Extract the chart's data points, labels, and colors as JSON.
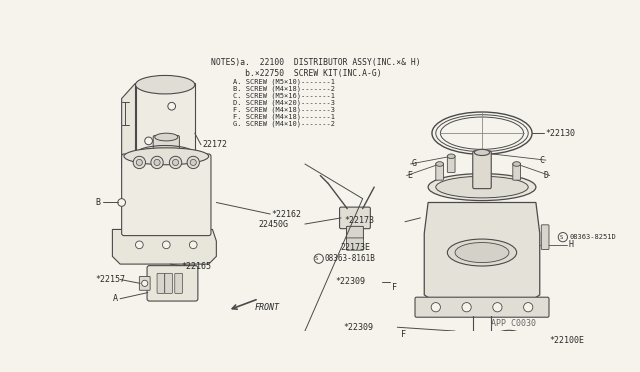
{
  "bg_color": "#f5f3ec",
  "line_color": "#4a4a4a",
  "text_color": "#2a2a2a",
  "notes_line1": "NOTES)a.  22100  DISTRIBUTOR ASSY(INC.×& H)",
  "notes_line2": "       b.×22750  SCREW KIT(INC.A-G)",
  "notes_lines": [
    "    A. SCREW (M5×10)-------1",
    "    B. SCREW (M4×18)-------2",
    "    C. SCREW (M5×16)-------1",
    "    D. SCREW (M4×20)-------3",
    "    F. SCREW (M4×18)-------3",
    "    F. SCREW (M4×18)-------1",
    "    G. SCREW (M4×10)-------2"
  ],
  "watermark": "APP C0030"
}
